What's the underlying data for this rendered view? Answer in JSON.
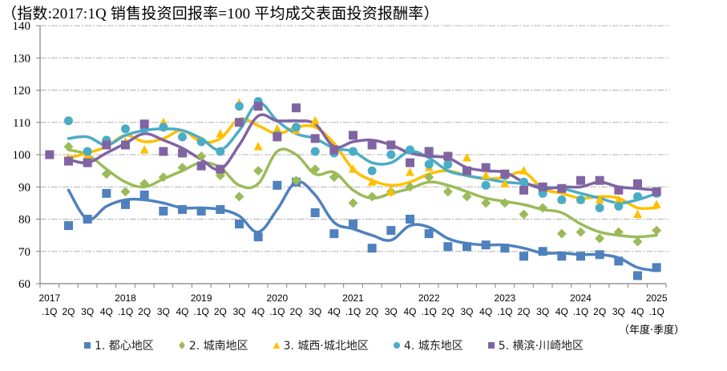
{
  "chart_data": {
    "type": "line",
    "title": "（指数:2017:1Q 销售投资回报率=100  平均成交表面投资报酬率）",
    "xlabel": "（年度·季度）",
    "ylabel": "",
    "ylim": [
      60,
      140
    ],
    "yticks": [
      60,
      70,
      80,
      90,
      100,
      110,
      120,
      130,
      140
    ],
    "grid": true,
    "legend_position": "bottom",
    "categories": [
      "2017 .1Q",
      "2Q",
      "3Q",
      "4Q",
      "2018 .1Q",
      "2Q",
      "3Q",
      "4Q",
      "2019 .1Q",
      "2Q",
      "3Q",
      "4Q",
      "2020 .1Q",
      "2Q",
      "3Q",
      "4Q",
      "2021 .1Q",
      "2Q",
      "3Q",
      "4Q",
      "2022 .1Q",
      "2Q",
      "3Q",
      "4Q",
      "2023 .1Q",
      "2Q",
      "3Q",
      "4Q",
      "2024 .1Q",
      "2Q",
      "3Q",
      "4Q",
      "2025 .1Q"
    ],
    "x_year_labels": [
      {
        "index": 0,
        "label": "2017"
      },
      {
        "index": 4,
        "label": "2018"
      },
      {
        "index": 8,
        "label": "2019"
      },
      {
        "index": 12,
        "label": "2020"
      },
      {
        "index": 16,
        "label": "2021"
      },
      {
        "index": 20,
        "label": "2022"
      },
      {
        "index": 24,
        "label": "2023"
      },
      {
        "index": 28,
        "label": "2024"
      },
      {
        "index": 32,
        "label": "2025"
      }
    ],
    "x_quarter_labels": [
      ".1Q",
      "2Q",
      "3Q",
      "4Q",
      ".1Q",
      "2Q",
      "3Q",
      "4Q",
      ".1Q",
      "2Q",
      "3Q",
      "4Q",
      ".1Q",
      "2Q",
      "3Q",
      "4Q",
      ".1Q",
      "2Q",
      "3Q",
      "4Q",
      ".1Q",
      "2Q",
      "3Q",
      "4Q",
      ".1Q",
      "2Q",
      "3Q",
      "4Q",
      ".1Q",
      "2Q",
      "3Q",
      "4Q",
      ".1Q"
    ],
    "series": [
      {
        "name": "1. 都心地区",
        "color": "#4F81BD",
        "marker": "square",
        "values": [
          null,
          78,
          80,
          88,
          84.5,
          87.5,
          82.5,
          83,
          82.5,
          83,
          78.5,
          74.5,
          90.5,
          91.5,
          82,
          75.5,
          78.5,
          71,
          76.5,
          80,
          75.5,
          71.5,
          71.5,
          72,
          71,
          68.5,
          70,
          68.5,
          68.5,
          69,
          67,
          62.5,
          65
        ],
        "trend": [
          null,
          89,
          80,
          84,
          86,
          86,
          85,
          83.5,
          83.5,
          83,
          81,
          76,
          83,
          91.5,
          87.5,
          79,
          77,
          75,
          73.5,
          78,
          77.5,
          74,
          72.5,
          72,
          72,
          71,
          69.5,
          69.5,
          69,
          69,
          68,
          65,
          64
        ]
      },
      {
        "name": "2. 城南地区",
        "color": "#9BBB59",
        "marker": "diamond",
        "values": [
          null,
          102.5,
          98,
          94,
          88.5,
          91,
          93,
          96,
          99.5,
          93.5,
          87,
          95,
          107,
          92,
          95.5,
          93,
          85,
          87,
          88.5,
          90,
          93,
          88.5,
          87,
          85,
          85,
          81.5,
          83.5,
          75.5,
          76,
          74,
          76,
          73,
          76.5
        ],
        "trend": [
          null,
          101.5,
          100,
          95.5,
          91.5,
          90,
          92.5,
          95,
          97.5,
          96,
          90.5,
          91,
          101,
          100,
          94,
          94.5,
          89,
          86.5,
          88,
          89.5,
          91.5,
          90.5,
          88.5,
          86.5,
          85.5,
          84.5,
          83,
          82,
          78.5,
          76,
          75,
          74.5,
          75
        ]
      },
      {
        "name": "3. 城西·城北地区",
        "color": "#FFC000",
        "marker": "triangle",
        "values": [
          null,
          99,
          100,
          103.5,
          104,
          101.5,
          110,
          106,
          104.5,
          106.5,
          116,
          102.5,
          108,
          107.5,
          110.5,
          101,
          95.5,
          91.5,
          88.5,
          94.5,
          96,
          98.5,
          99,
          93.5,
          91,
          95,
          89,
          86,
          86,
          86,
          86,
          81.5,
          84.5
        ],
        "trend": [
          null,
          99,
          100.5,
          102.5,
          106,
          104,
          105,
          107.5,
          104,
          105,
          111,
          109,
          106.5,
          108.5,
          108.5,
          103.5,
          95.5,
          92,
          90.5,
          91.5,
          94,
          95,
          93.5,
          92.5,
          93,
          94.5,
          89.5,
          88,
          86.5,
          87,
          86.5,
          83.5,
          83.5
        ]
      },
      {
        "name": "4. 城东地区",
        "color": "#4BACC6",
        "marker": "circle",
        "values": [
          null,
          110.5,
          101,
          104.5,
          108,
          108,
          108.5,
          105.5,
          104,
          101,
          115,
          116.5,
          106,
          108.5,
          101,
          100.5,
          101,
          95,
          100,
          101.5,
          97,
          97,
          95,
          90.5,
          93.5,
          91.5,
          88,
          86,
          86,
          83.5,
          84,
          87,
          88
        ],
        "trend": [
          null,
          105,
          105.5,
          103,
          106,
          107.5,
          108,
          107.5,
          105,
          101.5,
          107.5,
          116,
          110.5,
          106.5,
          105,
          102,
          101,
          97.5,
          97.5,
          101,
          99,
          95,
          93.5,
          92.5,
          91.5,
          91,
          90,
          89.5,
          88,
          86.5,
          85,
          86,
          88
        ]
      },
      {
        "name": "5. 横滨·川崎地区",
        "color": "#8064A2",
        "marker": "square",
        "values": [
          100,
          98,
          97.5,
          103,
          103,
          109.5,
          101,
          100.5,
          96.5,
          95.5,
          110,
          115,
          105.5,
          114.5,
          105,
          101.5,
          106,
          103,
          103,
          97.5,
          101,
          99.5,
          95,
          96,
          94,
          89,
          90,
          89.5,
          92,
          92,
          89,
          91,
          88.5
        ],
        "trend": [
          null,
          98.5,
          97.5,
          100.5,
          103.5,
          106.5,
          104.5,
          102,
          98.5,
          95.5,
          103,
          112,
          110.5,
          110.5,
          109.5,
          102.5,
          104,
          104.5,
          103,
          100.5,
          99.5,
          99,
          96,
          95,
          94.5,
          91.5,
          89.5,
          90,
          90,
          91.5,
          90,
          89.5,
          89
        ]
      }
    ]
  },
  "unit_label": "（年度·季度）"
}
